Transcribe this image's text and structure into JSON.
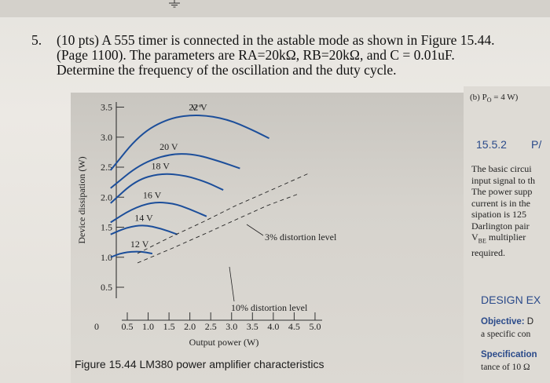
{
  "question": {
    "number": "5.",
    "lines": [
      "(10 pts) A 555 timer is connected in the astable mode as shown in Figure 15.44.",
      "(Page 1100). The parameters are RA=20kΩ, RB=20kΩ, and C = 0.01uF.",
      "Determine the frequency of the oscillation and the duty cycle."
    ]
  },
  "figure": {
    "caption_label": "Figure 15.44",
    "caption_text": "LM380 power amplifier characteristics",
    "supply_label": "V⁺",
    "annotations": [
      "3% distortion level",
      "10% distortion level"
    ]
  },
  "chart_data": {
    "type": "line",
    "title": "",
    "xlabel": "Output power (W)",
    "ylabel": "Device dissipation (W)",
    "x_ticks": [
      "0.5",
      "1.0",
      "1.5",
      "2.0",
      "2.5",
      "3.0",
      "3.5",
      "4.0",
      "4.5",
      "5.0"
    ],
    "y_ticks": [
      "0.5",
      "1.0",
      "1.5",
      "2.0",
      "2.5",
      "3.0",
      "3.5"
    ],
    "origin_label": "0",
    "xlim": [
      0,
      5.0
    ],
    "ylim": [
      0.5,
      3.5
    ],
    "series": [
      {
        "name": "22 V",
        "x": [
          0.1,
          0.8,
          1.5,
          2.2,
          2.9,
          3.5,
          3.9
        ],
        "y": [
          2.45,
          3.05,
          3.32,
          3.38,
          3.3,
          3.12,
          2.98
        ]
      },
      {
        "name": "20 V",
        "x": [
          0.1,
          0.8,
          1.5,
          2.1,
          2.7,
          3.2
        ],
        "y": [
          2.15,
          2.55,
          2.72,
          2.72,
          2.6,
          2.48
        ]
      },
      {
        "name": "18 V",
        "x": [
          0.1,
          0.7,
          1.3,
          1.9,
          2.4,
          2.8
        ],
        "y": [
          1.9,
          2.28,
          2.4,
          2.36,
          2.25,
          2.12
        ]
      },
      {
        "name": "16 V",
        "x": [
          0.1,
          0.6,
          1.1,
          1.6,
          2.0,
          2.4
        ],
        "y": [
          1.58,
          1.8,
          1.92,
          1.9,
          1.8,
          1.68
        ]
      },
      {
        "name": "14 V",
        "x": [
          0.1,
          0.5,
          0.9,
          1.3,
          1.7
        ],
        "y": [
          1.38,
          1.5,
          1.54,
          1.48,
          1.38
        ]
      },
      {
        "name": "12 V",
        "x": [
          0.1,
          0.4,
          0.8,
          1.1
        ],
        "y": [
          1.0,
          1.08,
          1.1,
          1.06
        ]
      }
    ]
  },
  "right_column": {
    "header_fragment": "(b) P",
    "header_sub": "O",
    "header_value": " = 4 W)",
    "section": "15.5.2",
    "section_fragment": "P/",
    "body_lines": [
      "The basic circui",
      "input signal to th",
      "The power supp",
      "current is in the",
      "sipation is 125",
      "Darlington pair",
      "V",
      "BE",
      " multiplier",
      "required."
    ],
    "design": "DESIGN EX",
    "objective_label": "Objective:",
    "objective_frag": " D",
    "objective_line2": "a specific con",
    "spec_label": "Specification",
    "spec_line2": "tance of 10 Ω"
  }
}
